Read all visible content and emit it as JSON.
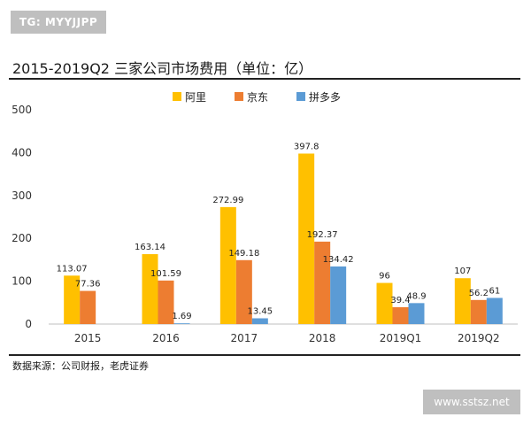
{
  "watermark_top": "TG: MYYJJPP",
  "watermark_bottom": "www.sstsz.net",
  "source_note": "数据来源：公司财报，老虎证券",
  "colors": {
    "alibaba": "#FFC000",
    "jd": "#ED7D31",
    "pdd": "#5B9BD5",
    "axis": "#bfbfbf",
    "rule": "#222222"
  },
  "chart_data": {
    "type": "bar",
    "title": "2015-2019Q2 三家公司市场费用（单位：亿）",
    "categories": [
      "2015",
      "2016",
      "2017",
      "2018",
      "2019Q1",
      "2019Q2"
    ],
    "series": [
      {
        "name": "阿里",
        "color": "#FFC000",
        "values": [
          113.07,
          163.14,
          272.99,
          397.8,
          96,
          107
        ],
        "labels": [
          "113.07",
          "163.14",
          "272.99",
          "397.8",
          "96",
          "107"
        ]
      },
      {
        "name": "京东",
        "color": "#ED7D31",
        "values": [
          77.36,
          101.59,
          149.18,
          192.37,
          39.4,
          56.2
        ],
        "labels": [
          "77.36",
          "101.59",
          "149.18",
          "192.37",
          "39.4",
          "56.2"
        ]
      },
      {
        "name": "拼多多",
        "color": "#5B9BD5",
        "values": [
          null,
          1.69,
          13.45,
          134.42,
          48.9,
          61
        ],
        "labels": [
          null,
          "1.69",
          "13.45",
          "134.42",
          "48.9",
          "61"
        ]
      }
    ],
    "ylim": [
      0,
      500
    ],
    "yticks": [
      0,
      100,
      200,
      300,
      400,
      500
    ],
    "xlabel": "",
    "ylabel": "",
    "legend": "top-center",
    "grid": false
  }
}
